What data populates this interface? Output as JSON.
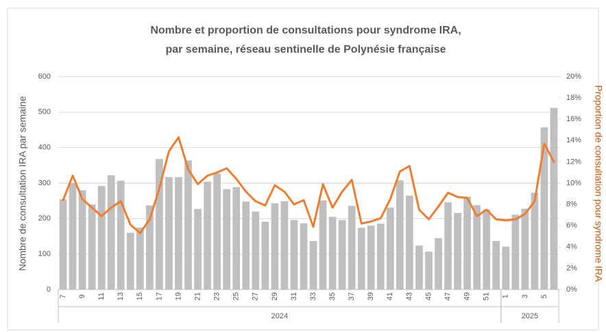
{
  "chart_data": {
    "type": "bar-line",
    "title": "Nombre et proportion de consultations pour syndrome IRA,",
    "subtitle": "par semaine, réseau sentinelle de Polynésie française",
    "y_label": "Nombre de consultation IRA par semaine",
    "y2_label": "Proportion de consultation pour syndrome IRA",
    "categories": [
      "7",
      null,
      "9",
      null,
      "11",
      null,
      "13",
      null,
      "15",
      null,
      "17",
      null,
      "19",
      null,
      "21",
      null,
      "23",
      null,
      "25",
      null,
      "27",
      null,
      "29",
      null,
      "31",
      null,
      "33",
      null,
      "35",
      null,
      "37",
      null,
      "39",
      null,
      "41",
      null,
      "43",
      null,
      "45",
      null,
      "47",
      null,
      "49",
      null,
      "51",
      null,
      "1",
      null,
      "3",
      null,
      "5",
      null
    ],
    "groups": [
      "2024",
      "2024",
      "2024",
      "2024",
      "2024",
      "2024",
      "2024",
      "2024",
      "2024",
      "2024",
      "2024",
      "2024",
      "2024",
      "2024",
      "2024",
      "2024",
      "2024",
      "2024",
      "2024",
      "2024",
      "2024",
      "2024",
      "2024",
      "2024",
      "2024",
      "2024",
      "2024",
      "2024",
      "2024",
      "2024",
      "2024",
      "2024",
      "2024",
      "2024",
      "2024",
      "2024",
      "2024",
      "2024",
      "2024",
      "2024",
      "2024",
      "2024",
      "2024",
      "2024",
      "2024",
      "2024",
      "2025",
      "2025",
      "2025",
      "2025",
      "2025",
      "2025"
    ],
    "series": [
      {
        "type": "bar",
        "color": "#bfbfbf",
        "values": [
          255,
          300,
          280,
          240,
          292,
          322,
          307,
          160,
          175,
          237,
          368,
          317,
          317,
          364,
          227,
          304,
          327,
          283,
          289,
          248,
          220,
          191,
          243,
          249,
          196,
          187,
          137,
          251,
          205,
          196,
          236,
          174,
          180,
          186,
          231,
          308,
          265,
          124,
          107,
          145,
          246,
          216,
          262,
          238,
          226,
          137,
          121,
          211,
          228,
          273,
          457,
          512
        ]
      },
      {
        "type": "line",
        "axis": "y2",
        "color": "#ed7d31",
        "values": [
          8.4,
          10.7,
          8.5,
          7.7,
          6.9,
          7.7,
          8.3,
          6.1,
          5.3,
          6.6,
          9.5,
          13.0,
          14.3,
          11.3,
          9.9,
          10.7,
          11.0,
          11.4,
          10.4,
          9.2,
          8.3,
          7.9,
          9.8,
          9.2,
          8.0,
          8.4,
          5.9,
          9.9,
          7.7,
          9.2,
          10.3,
          6.2,
          6.4,
          6.7,
          8.5,
          11.1,
          11.6,
          7.5,
          6.6,
          7.8,
          9.1,
          8.7,
          8.6,
          6.9,
          7.5,
          6.6,
          6.5,
          6.6,
          7.1,
          8.3,
          13.7,
          12.0
        ]
      }
    ],
    "ylim": [
      0,
      600
    ],
    "yticks": [
      0,
      100,
      200,
      300,
      400,
      500,
      600
    ],
    "y2lim": [
      0,
      20
    ],
    "y2ticks": [
      {
        "value": 0,
        "label": "0%"
      },
      {
        "value": 2,
        "label": "2%"
      },
      {
        "value": 4,
        "label": "4%"
      },
      {
        "value": 6,
        "label": "6%"
      },
      {
        "value": 8,
        "label": "8%"
      },
      {
        "value": 10,
        "label": "10%"
      },
      {
        "value": 12,
        "label": "12%"
      },
      {
        "value": 14,
        "label": "14%"
      },
      {
        "value": 16,
        "label": "16%"
      },
      {
        "value": 18,
        "label": "18%"
      },
      {
        "value": 20,
        "label": "20%"
      }
    ],
    "grid": true
  }
}
